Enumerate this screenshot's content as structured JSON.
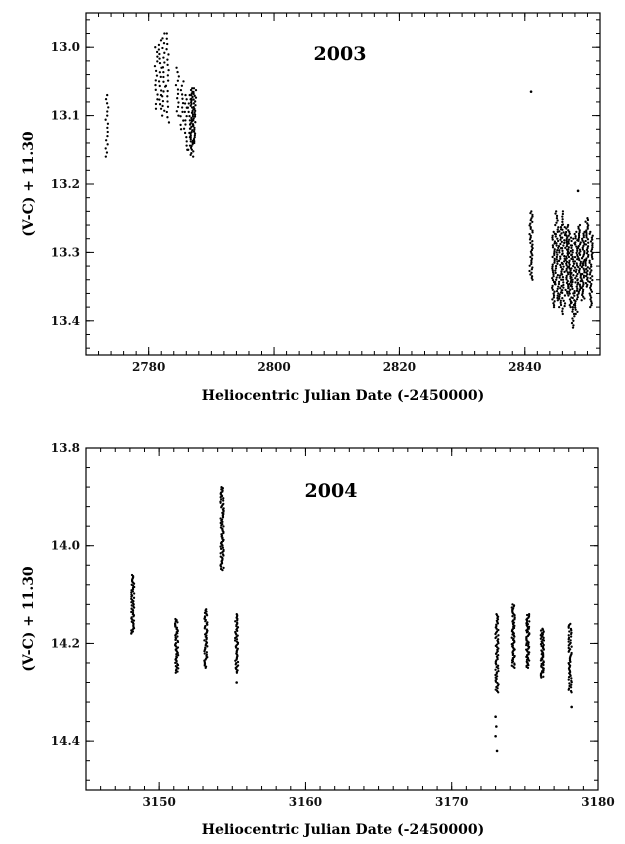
{
  "chart_data": [
    {
      "type": "scatter",
      "title": "2003",
      "xlabel": "Heliocentric Julian Date (-2450000)",
      "ylabel": "(V-C) + 11.30",
      "xlim": [
        2770,
        2852
      ],
      "ylim": [
        13.45,
        12.95
      ],
      "y_inverted": true,
      "x_ticks": [
        2780,
        2800,
        2820,
        2840
      ],
      "y_ticks": [
        13.0,
        13.1,
        13.2,
        13.3,
        13.4
      ],
      "grid": false,
      "marker_color": "#000000",
      "series": [
        {
          "groups": [
            {
              "x": 2773.3,
              "ymin": 13.07,
              "ymax": 13.16,
              "n": 16
            },
            {
              "x": 2781.2,
              "ymin": 13.0,
              "ymax": 13.09,
              "n": 14
            },
            {
              "x": 2781.8,
              "ymin": 12.99,
              "ymax": 13.09,
              "n": 16
            },
            {
              "x": 2782.4,
              "ymin": 12.98,
              "ymax": 13.1,
              "n": 18
            },
            {
              "x": 2783.0,
              "ymin": 12.98,
              "ymax": 13.11,
              "n": 18
            },
            {
              "x": 2784.6,
              "ymin": 13.03,
              "ymax": 13.1,
              "n": 12
            },
            {
              "x": 2785.3,
              "ymin": 13.05,
              "ymax": 13.12,
              "n": 12
            },
            {
              "x": 2785.9,
              "ymin": 13.07,
              "ymax": 13.15,
              "n": 14
            },
            {
              "x": 2786.5,
              "ymin": 13.07,
              "ymax": 13.15,
              "n": 14
            },
            {
              "x": 2786.9,
              "ymin": 13.06,
              "ymax": 13.16,
              "n": 40
            },
            {
              "x": 2787.3,
              "ymin": 13.06,
              "ymax": 13.14,
              "n": 30
            },
            {
              "x": 2841.0,
              "ymin": 13.24,
              "ymax": 13.34,
              "n": 40
            },
            {
              "x": 2844.6,
              "ymin": 13.27,
              "ymax": 13.38,
              "n": 40
            },
            {
              "x": 2845.1,
              "ymin": 13.24,
              "ymax": 13.37,
              "n": 40
            },
            {
              "x": 2845.7,
              "ymin": 13.26,
              "ymax": 13.38,
              "n": 40
            },
            {
              "x": 2846.2,
              "ymin": 13.24,
              "ymax": 13.39,
              "n": 40
            },
            {
              "x": 2846.7,
              "ymin": 13.26,
              "ymax": 13.36,
              "n": 40
            },
            {
              "x": 2847.2,
              "ymin": 13.27,
              "ymax": 13.38,
              "n": 40
            },
            {
              "x": 2847.7,
              "ymin": 13.28,
              "ymax": 13.41,
              "n": 40
            },
            {
              "x": 2848.2,
              "ymin": 13.27,
              "ymax": 13.39,
              "n": 40
            },
            {
              "x": 2848.7,
              "ymin": 13.26,
              "ymax": 13.36,
              "n": 40
            },
            {
              "x": 2849.3,
              "ymin": 13.27,
              "ymax": 13.37,
              "n": 40
            },
            {
              "x": 2849.9,
              "ymin": 13.25,
              "ymax": 13.35,
              "n": 40
            },
            {
              "x": 2850.6,
              "ymin": 13.27,
              "ymax": 13.38,
              "n": 40
            }
          ],
          "points": [
            {
              "x": 2841.0,
              "y": 13.065
            },
            {
              "x": 2848.5,
              "y": 13.21
            }
          ]
        }
      ]
    },
    {
      "type": "scatter",
      "title": "2004",
      "xlabel": "Heliocentric Julian Date (-2450000)",
      "ylabel": "(V-C) + 11.30",
      "xlim": [
        3145,
        3180
      ],
      "ylim": [
        14.5,
        13.8
      ],
      "y_inverted": true,
      "x_ticks": [
        3150,
        3160,
        3170,
        3180
      ],
      "y_ticks": [
        13.8,
        14.0,
        14.2,
        14.4
      ],
      "grid": false,
      "marker_color": "#000000",
      "series": [
        {
          "groups": [
            {
              "x": 3148.2,
              "ymin": 14.06,
              "ymax": 14.18,
              "n": 55
            },
            {
              "x": 3151.2,
              "ymin": 14.15,
              "ymax": 14.26,
              "n": 50
            },
            {
              "x": 3153.2,
              "ymin": 14.13,
              "ymax": 14.25,
              "n": 50
            },
            {
              "x": 3154.3,
              "ymin": 13.88,
              "ymax": 14.05,
              "n": 75
            },
            {
              "x": 3155.3,
              "ymin": 14.14,
              "ymax": 14.26,
              "n": 50
            },
            {
              "x": 3173.1,
              "ymin": 14.14,
              "ymax": 14.3,
              "n": 60
            },
            {
              "x": 3174.2,
              "ymin": 14.12,
              "ymax": 14.25,
              "n": 60
            },
            {
              "x": 3175.2,
              "ymin": 14.14,
              "ymax": 14.25,
              "n": 60
            },
            {
              "x": 3176.2,
              "ymin": 14.17,
              "ymax": 14.27,
              "n": 55
            },
            {
              "x": 3178.1,
              "ymin": 14.16,
              "ymax": 14.3,
              "n": 55
            }
          ],
          "points": [
            {
              "x": 3173.0,
              "y": 14.35
            },
            {
              "x": 3173.05,
              "y": 14.37
            },
            {
              "x": 3173.0,
              "y": 14.39
            },
            {
              "x": 3173.1,
              "y": 14.42
            },
            {
              "x": 3155.3,
              "y": 14.28
            },
            {
              "x": 3178.2,
              "y": 14.33
            }
          ]
        }
      ]
    }
  ]
}
